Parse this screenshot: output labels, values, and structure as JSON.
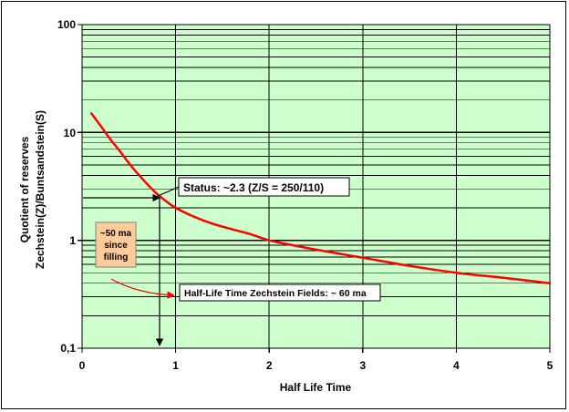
{
  "chart_data": {
    "type": "line",
    "title": "",
    "xlabel": "Half Life Time",
    "ylabel_line1": "Quotient of reserves",
    "ylabel_line2": "Zechstein(Z)/Buntsandstein(S)",
    "xlim": [
      0,
      5
    ],
    "ylim": [
      0.1,
      100
    ],
    "y_scale": "log",
    "x_ticks": [
      "0",
      "1",
      "2",
      "3",
      "4",
      "5"
    ],
    "y_ticks": [
      "0,1",
      "1",
      "10",
      "100"
    ],
    "grid": true,
    "legend": "none",
    "series": [
      {
        "color": "#ff0000",
        "x": [
          0.1,
          0.2,
          0.3,
          0.4,
          0.5,
          0.6,
          0.7,
          0.8,
          0.9,
          1.0,
          1.2,
          1.4,
          1.6,
          1.8,
          2.0,
          2.2,
          2.5,
          3.0,
          3.5,
          4.0,
          4.5,
          5.0
        ],
        "y": [
          15,
          11.5,
          8.7,
          6.8,
          5.2,
          4.1,
          3.3,
          2.7,
          2.3,
          2.0,
          1.65,
          1.42,
          1.27,
          1.14,
          1.0,
          0.92,
          0.82,
          0.69,
          0.58,
          0.5,
          0.45,
          0.4
        ]
      }
    ],
    "annotations": {
      "status": "Status: ~2.3 (Z/S = 250/110)",
      "half_life": "Half-Life Time Zechstein Fields: ~ 60 ma",
      "since_line1": "~50 ma",
      "since_line2": "since",
      "since_line3": "filling"
    },
    "colors": {
      "plot_bg": "#ccffcc",
      "grid": "#000000",
      "curve": "#ff0000",
      "since_box": "#ffcc99"
    }
  }
}
